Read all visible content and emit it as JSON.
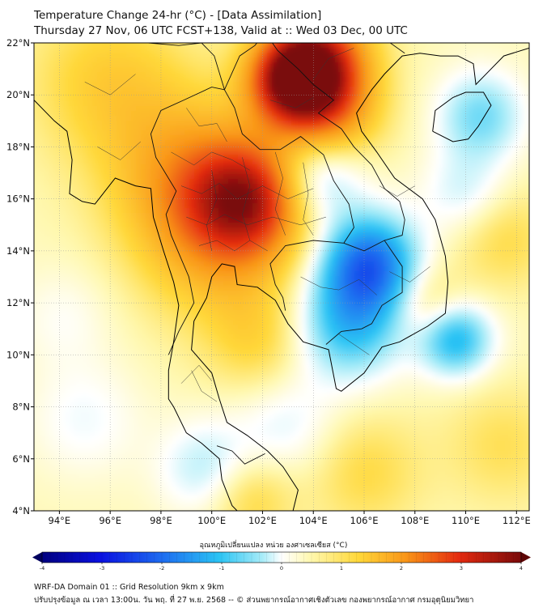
{
  "title": {
    "line1": "Temperature Change 24-hr (°C) - [Data Assimilation]",
    "line2": "Thursday 27 Nov, 06 UTC FCST+138, Valid at :: Wed 03 Dec, 00 UTC"
  },
  "map": {
    "lat_ticks": [
      "22°N",
      "20°N",
      "18°N",
      "16°N",
      "14°N",
      "12°N",
      "10°N",
      "8°N",
      "6°N",
      "4°N"
    ],
    "lon_ticks": [
      "94°E",
      "96°E",
      "98°E",
      "100°E",
      "102°E",
      "104°E",
      "106°E",
      "108°E",
      "110°E",
      "112°E"
    ],
    "lat_range": [
      4,
      22
    ],
    "lon_range": [
      93,
      112.5
    ]
  },
  "colorbar": {
    "label": "อุณหภูมิเปลี่ยนแปลง หน่วย องศาเซลเซียส (°C)",
    "ticks": [
      "-4",
      "-3",
      "-2",
      "-1",
      "0",
      "1",
      "2",
      "3",
      "4"
    ],
    "min": -4,
    "max": 4
  },
  "footer": {
    "line1": "WRF-DA Domain 01 :: Grid Resolution 9km x 9km",
    "line2": "ปรับปรุงข้อมูล ณ เวลา 13:00น. วัน พฤ. ที่ 27 พ.ย. 2568 -- © ส่วนพยากรณ์อากาศเชิงตัวเลข กองพยากรณ์อากาศ กรมอุตุนิยมวิทยา"
  },
  "field_anomalies": [
    {
      "name": "north-laos-warm",
      "lon": 103.2,
      "lat": 20.6,
      "value": 3.1,
      "spread": 1.2
    },
    {
      "name": "yunnan-warm",
      "lon": 104.3,
      "lat": 21.6,
      "value": 2.0,
      "spread": 1.4
    },
    {
      "name": "north-vietnam-warm",
      "lon": 104.6,
      "lat": 19.5,
      "value": 1.6,
      "spread": 1.4
    },
    {
      "name": "central-thailand-warm",
      "lon": 101.4,
      "lat": 16.0,
      "value": 2.3,
      "spread": 1.5
    },
    {
      "name": "west-thailand-warm",
      "lon": 99.2,
      "lat": 16.8,
      "value": 1.3,
      "spread": 2.2
    },
    {
      "name": "upper-thailand-warm",
      "lon": 100.4,
      "lat": 14.2,
      "value": 1.0,
      "spread": 2.2
    },
    {
      "name": "myanmar-warm",
      "lon": 96.0,
      "lat": 20.5,
      "value": 0.8,
      "spread": 2.2
    },
    {
      "name": "cambodia-cold",
      "lon": 106.2,
      "lat": 13.5,
      "value": -2.3,
      "spread": 1.3
    },
    {
      "name": "mekong-cold",
      "lon": 105.4,
      "lat": 11.2,
      "value": -1.4,
      "spread": 1.5
    },
    {
      "name": "laos-cold",
      "lon": 104.2,
      "lat": 16.8,
      "value": -1.0,
      "spread": 1.2
    },
    {
      "name": "sea-cold",
      "lon": 109.6,
      "lat": 10.6,
      "value": -1.5,
      "spread": 1.0
    },
    {
      "name": "hainan-cold",
      "lon": 110.6,
      "lat": 19.2,
      "value": -1.0,
      "spread": 1.2
    },
    {
      "name": "gulf-cold",
      "lon": 110.0,
      "lat": 16.2,
      "value": -0.6,
      "spread": 1.2
    },
    {
      "name": "peninsula-cold",
      "lon": 99.8,
      "lat": 5.6,
      "value": -0.7,
      "spread": 1.3
    },
    {
      "name": "south-sea-cold",
      "lon": 103.0,
      "lat": 7.2,
      "value": -0.5,
      "spread": 1.5
    },
    {
      "name": "andaman-cold",
      "lon": 95.0,
      "lat": 7.5,
      "value": -0.4,
      "spread": 1.6
    },
    {
      "name": "bay-cold",
      "lon": 94.2,
      "lat": 11.5,
      "value": -0.3,
      "spread": 1.4
    },
    {
      "name": "south-warm",
      "lon": 106.0,
      "lat": 5.5,
      "value": 0.6,
      "spread": 1.6
    },
    {
      "name": "malaya-warm",
      "lon": 101.5,
      "lat": 4.5,
      "value": 0.7,
      "spread": 1.2
    },
    {
      "name": "east-sea-warm",
      "lon": 111.5,
      "lat": 14.5,
      "value": 0.6,
      "spread": 1.4
    },
    {
      "name": "east-south-warm",
      "lon": 111.5,
      "lat": 6.5,
      "value": 0.5,
      "spread": 1.6
    },
    {
      "name": "gulf-thailand-warm",
      "lon": 101.8,
      "lat": 10.5,
      "value": 0.6,
      "spread": 1.4
    },
    {
      "name": "vietnam-central-warm",
      "lon": 108.5,
      "lat": 12.0,
      "value": 0.6,
      "spread": 1.0
    }
  ],
  "coastlines": [
    {
      "name": "mainland-coast",
      "points": [
        [
          93.0,
          19.8
        ],
        [
          93.8,
          19.0
        ],
        [
          94.3,
          18.6
        ],
        [
          94.5,
          17.5
        ],
        [
          94.4,
          16.2
        ],
        [
          94.9,
          15.9
        ],
        [
          95.4,
          15.8
        ],
        [
          96.2,
          16.8
        ],
        [
          97.0,
          16.5
        ],
        [
          97.6,
          16.4
        ],
        [
          97.7,
          15.3
        ],
        [
          98.1,
          14.0
        ],
        [
          98.5,
          12.8
        ],
        [
          98.7,
          11.9
        ],
        [
          98.5,
          10.5
        ],
        [
          98.3,
          9.4
        ],
        [
          98.3,
          8.3
        ],
        [
          98.5,
          8.0
        ],
        [
          99.0,
          7.0
        ],
        [
          99.6,
          6.6
        ],
        [
          100.3,
          6.0
        ],
        [
          100.4,
          5.2
        ],
        [
          100.8,
          4.2
        ],
        [
          101.0,
          4.0
        ]
      ]
    },
    {
      "name": "gulf-coast",
      "points": [
        [
          103.2,
          4.0
        ],
        [
          103.4,
          4.8
        ],
        [
          102.8,
          5.7
        ],
        [
          102.2,
          6.3
        ],
        [
          101.4,
          6.9
        ],
        [
          100.6,
          7.4
        ],
        [
          100.3,
          8.3
        ],
        [
          100.0,
          9.3
        ],
        [
          99.2,
          10.2
        ],
        [
          99.3,
          11.3
        ],
        [
          99.8,
          12.2
        ],
        [
          100.0,
          13.0
        ],
        [
          100.4,
          13.5
        ],
        [
          100.9,
          13.4
        ],
        [
          101.0,
          12.7
        ],
        [
          101.8,
          12.6
        ],
        [
          102.5,
          12.1
        ],
        [
          103.0,
          11.2
        ],
        [
          103.6,
          10.5
        ],
        [
          104.6,
          10.2
        ],
        [
          104.9,
          8.7
        ],
        [
          105.1,
          8.6
        ],
        [
          106.0,
          9.3
        ],
        [
          106.7,
          10.3
        ],
        [
          107.4,
          10.5
        ],
        [
          108.5,
          11.1
        ],
        [
          109.2,
          11.6
        ],
        [
          109.3,
          12.8
        ],
        [
          109.2,
          13.8
        ],
        [
          108.8,
          15.2
        ],
        [
          108.3,
          16.0
        ],
        [
          107.2,
          16.8
        ],
        [
          106.5,
          17.8
        ],
        [
          105.9,
          18.6
        ],
        [
          105.7,
          19.3
        ],
        [
          106.3,
          20.2
        ],
        [
          106.8,
          20.8
        ],
        [
          107.5,
          21.5
        ],
        [
          108.2,
          21.6
        ],
        [
          109.0,
          21.5
        ],
        [
          109.7,
          21.5
        ],
        [
          110.3,
          21.2
        ],
        [
          110.4,
          20.4
        ],
        [
          110.9,
          20.9
        ],
        [
          111.5,
          21.5
        ],
        [
          112.5,
          21.8
        ]
      ]
    },
    {
      "name": "hainan",
      "points": [
        [
          108.7,
          18.6
        ],
        [
          109.5,
          18.2
        ],
        [
          110.1,
          18.3
        ],
        [
          110.5,
          18.8
        ],
        [
          111.0,
          19.6
        ],
        [
          110.7,
          20.1
        ],
        [
          110.0,
          20.1
        ],
        [
          109.5,
          19.9
        ],
        [
          108.8,
          19.4
        ],
        [
          108.7,
          18.6
        ]
      ]
    }
  ],
  "borders": [
    {
      "name": "myanmar-thailand",
      "points": [
        [
          98.3,
          10.0
        ],
        [
          98.7,
          10.9
        ],
        [
          99.3,
          12.0
        ],
        [
          99.1,
          13.0
        ],
        [
          98.4,
          14.6
        ],
        [
          98.2,
          15.4
        ],
        [
          98.6,
          16.3
        ],
        [
          97.8,
          17.6
        ],
        [
          97.6,
          18.5
        ],
        [
          98.0,
          19.4
        ],
        [
          98.9,
          19.8
        ],
        [
          100.0,
          20.3
        ],
        [
          100.5,
          20.2
        ]
      ]
    },
    {
      "name": "thailand-laos",
      "points": [
        [
          100.5,
          20.2
        ],
        [
          100.9,
          19.5
        ],
        [
          101.2,
          18.5
        ],
        [
          101.9,
          17.9
        ],
        [
          102.7,
          17.9
        ],
        [
          103.5,
          18.4
        ],
        [
          104.4,
          17.7
        ],
        [
          104.8,
          16.7
        ],
        [
          105.4,
          15.8
        ],
        [
          105.6,
          14.9
        ],
        [
          105.2,
          14.3
        ]
      ]
    },
    {
      "name": "thailand-cambodia",
      "points": [
        [
          105.2,
          14.3
        ],
        [
          104.0,
          14.4
        ],
        [
          102.9,
          14.2
        ],
        [
          102.3,
          13.5
        ],
        [
          102.5,
          12.7
        ],
        [
          102.8,
          12.2
        ],
        [
          102.9,
          11.7
        ]
      ]
    },
    {
      "name": "laos-vietnam",
      "points": [
        [
          102.1,
          22.4
        ],
        [
          102.6,
          21.7
        ],
        [
          103.4,
          21.0
        ],
        [
          104.0,
          20.4
        ],
        [
          104.8,
          19.8
        ],
        [
          104.2,
          19.3
        ],
        [
          105.1,
          18.7
        ],
        [
          105.6,
          18.0
        ],
        [
          106.3,
          17.3
        ],
        [
          106.8,
          16.4
        ],
        [
          107.4,
          15.9
        ],
        [
          107.6,
          15.2
        ],
        [
          107.5,
          14.6
        ],
        [
          106.8,
          14.4
        ]
      ]
    },
    {
      "name": "laos-cambodia",
      "points": [
        [
          106.8,
          14.4
        ],
        [
          106.0,
          14.0
        ],
        [
          105.2,
          14.3
        ]
      ]
    },
    {
      "name": "cambodia-vietnam",
      "points": [
        [
          106.8,
          14.4
        ],
        [
          107.5,
          13.4
        ],
        [
          107.5,
          12.4
        ],
        [
          106.7,
          11.9
        ],
        [
          106.3,
          11.2
        ],
        [
          105.9,
          11.0
        ],
        [
          105.1,
          10.9
        ],
        [
          104.5,
          10.4
        ]
      ]
    },
    {
      "name": "laos-myanmar-china",
      "points": [
        [
          100.5,
          20.2
        ],
        [
          101.1,
          21.5
        ],
        [
          101.7,
          21.9
        ],
        [
          102.1,
          22.4
        ]
      ]
    },
    {
      "name": "china-vietnam",
      "points": [
        [
          102.1,
          22.4
        ],
        [
          103.0,
          22.6
        ],
        [
          104.0,
          22.8
        ],
        [
          105.3,
          23.3
        ],
        [
          106.7,
          22.8
        ],
        [
          106.6,
          22.3
        ],
        [
          107.6,
          21.6
        ]
      ]
    },
    {
      "name": "myanmar-china",
      "points": [
        [
          97.5,
          22.0
        ],
        [
          98.7,
          21.9
        ],
        [
          99.6,
          22.0
        ],
        [
          100.1,
          21.5
        ],
        [
          100.5,
          20.2
        ]
      ]
    },
    {
      "name": "malaysia-thailand",
      "points": [
        [
          100.2,
          6.5
        ],
        [
          100.8,
          6.3
        ],
        [
          101.3,
          5.8
        ],
        [
          101.7,
          6.0
        ],
        [
          102.1,
          6.2
        ]
      ]
    }
  ],
  "provinces": [
    {
      "name": "prov-1",
      "points": [
        [
          99.0,
          19.5
        ],
        [
          99.5,
          18.8
        ],
        [
          100.2,
          18.9
        ],
        [
          100.6,
          18.2
        ]
      ]
    },
    {
      "name": "prov-2",
      "points": [
        [
          98.4,
          17.8
        ],
        [
          99.3,
          17.3
        ],
        [
          100.0,
          17.8
        ],
        [
          100.8,
          17.5
        ],
        [
          101.5,
          17.1
        ]
      ]
    },
    {
      "name": "prov-3",
      "points": [
        [
          98.8,
          16.5
        ],
        [
          99.6,
          16.2
        ],
        [
          100.3,
          16.6
        ],
        [
          101.0,
          16.0
        ],
        [
          102.0,
          16.5
        ],
        [
          103.0,
          16.0
        ],
        [
          104.0,
          16.4
        ]
      ]
    },
    {
      "name": "prov-4",
      "points": [
        [
          99.0,
          15.3
        ],
        [
          99.8,
          15.0
        ],
        [
          100.5,
          15.4
        ],
        [
          101.4,
          15.0
        ],
        [
          102.4,
          15.3
        ],
        [
          103.5,
          15.0
        ],
        [
          104.5,
          15.3
        ]
      ]
    },
    {
      "name": "prov-5",
      "points": [
        [
          99.5,
          14.2
        ],
        [
          100.2,
          14.4
        ],
        [
          100.9,
          14.0
        ],
        [
          101.5,
          14.4
        ],
        [
          102.2,
          14.0
        ]
      ]
    },
    {
      "name": "prov-6",
      "points": [
        [
          100.0,
          17.1
        ],
        [
          100.2,
          16.0
        ],
        [
          99.8,
          15.0
        ],
        [
          100.0,
          14.0
        ]
      ]
    },
    {
      "name": "prov-7",
      "points": [
        [
          101.2,
          17.6
        ],
        [
          101.5,
          16.5
        ],
        [
          101.2,
          15.4
        ],
        [
          101.5,
          14.4
        ]
      ]
    },
    {
      "name": "prov-8",
      "points": [
        [
          102.5,
          17.8
        ],
        [
          102.8,
          16.8
        ],
        [
          102.5,
          15.6
        ],
        [
          102.9,
          14.6
        ]
      ]
    },
    {
      "name": "prov-9",
      "points": [
        [
          103.6,
          17.4
        ],
        [
          103.8,
          16.2
        ],
        [
          103.6,
          15.2
        ],
        [
          104.0,
          14.6
        ]
      ]
    },
    {
      "name": "prov-10",
      "points": [
        [
          99.2,
          9.4
        ],
        [
          99.6,
          8.6
        ],
        [
          100.2,
          8.2
        ]
      ]
    },
    {
      "name": "prov-11",
      "points": [
        [
          98.8,
          8.9
        ],
        [
          99.5,
          9.6
        ],
        [
          100.0,
          9.0
        ]
      ]
    },
    {
      "name": "prov-12",
      "points": [
        [
          104.0,
          20.6
        ],
        [
          104.6,
          21.4
        ],
        [
          105.6,
          21.8
        ]
      ]
    },
    {
      "name": "prov-13",
      "points": [
        [
          102.3,
          19.8
        ],
        [
          103.3,
          19.5
        ],
        [
          104.0,
          19.9
        ]
      ]
    },
    {
      "name": "prov-14",
      "points": [
        [
          105.0,
          12.5
        ],
        [
          105.8,
          12.9
        ],
        [
          106.5,
          12.3
        ]
      ]
    },
    {
      "name": "prov-15",
      "points": [
        [
          103.5,
          13.0
        ],
        [
          104.3,
          12.6
        ],
        [
          105.0,
          12.5
        ]
      ]
    },
    {
      "name": "prov-16",
      "points": [
        [
          105.0,
          10.8
        ],
        [
          105.6,
          10.4
        ],
        [
          106.2,
          10.0
        ]
      ]
    },
    {
      "name": "prov-17",
      "points": [
        [
          107.0,
          13.2
        ],
        [
          107.8,
          12.8
        ],
        [
          108.6,
          13.4
        ]
      ]
    },
    {
      "name": "prov-18",
      "points": [
        [
          106.6,
          16.5
        ],
        [
          107.3,
          16.1
        ],
        [
          108.0,
          16.5
        ]
      ]
    },
    {
      "name": "prov-19",
      "points": [
        [
          95.0,
          20.5
        ],
        [
          96.0,
          20.0
        ],
        [
          97.0,
          20.8
        ]
      ]
    },
    {
      "name": "prov-20",
      "points": [
        [
          95.5,
          18.0
        ],
        [
          96.4,
          17.5
        ],
        [
          97.2,
          18.2
        ]
      ]
    }
  ]
}
